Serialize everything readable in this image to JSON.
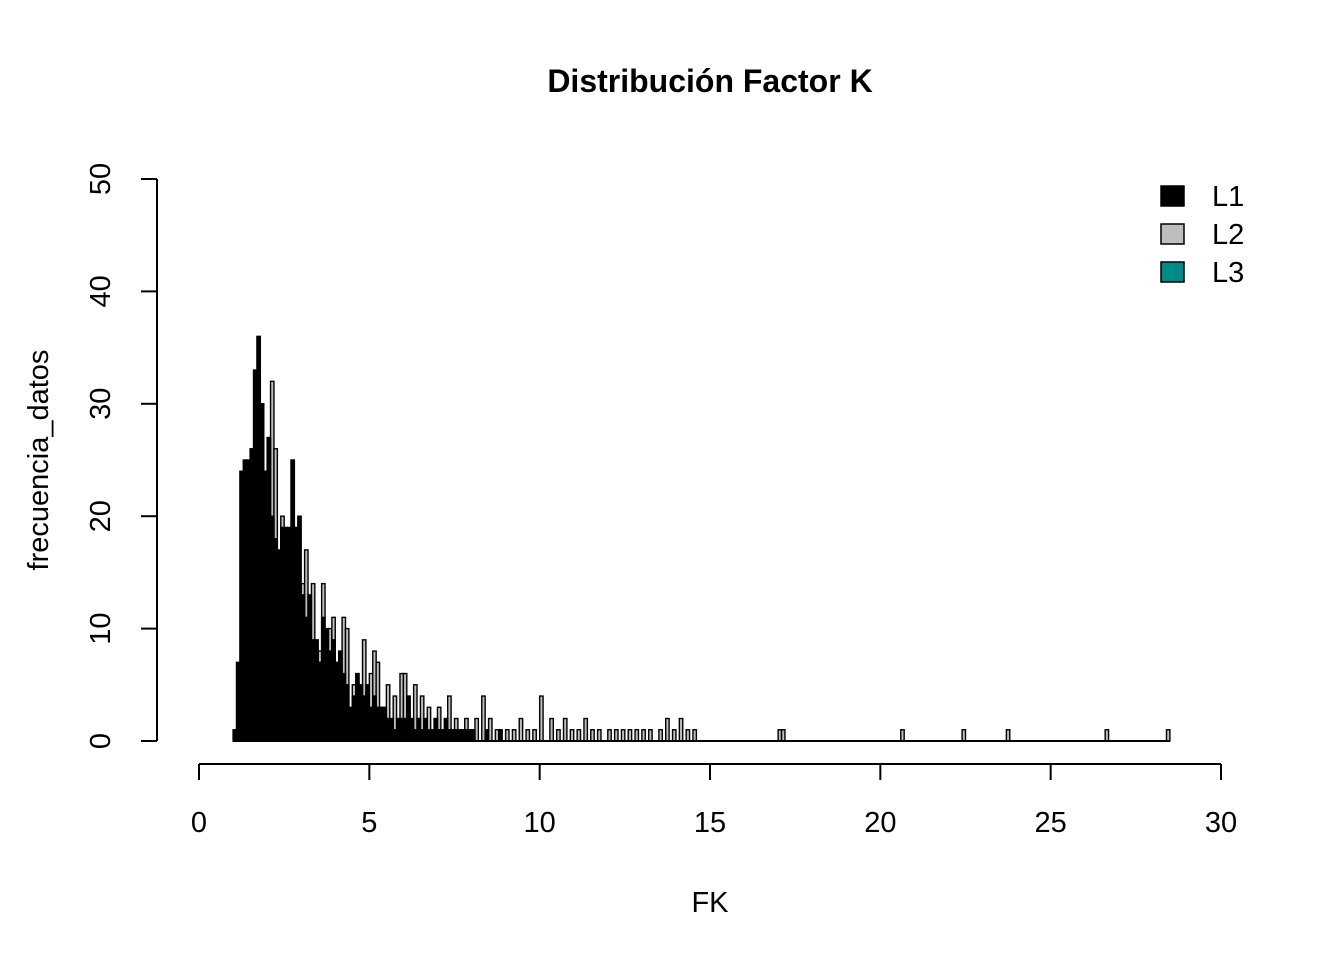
{
  "chart_data": {
    "type": "bar",
    "title": "Distribución Factor K",
    "xlabel": "FK",
    "ylabel": "frecuencia_datos",
    "xlim": [
      0,
      30
    ],
    "ylim": [
      0,
      50
    ],
    "x_ticks": [
      "0",
      "5",
      "10",
      "15",
      "20",
      "25",
      "30"
    ],
    "y_ticks": [
      "0",
      "10",
      "20",
      "30",
      "40",
      "50"
    ],
    "grid": false,
    "legend": {
      "position": "top-right",
      "entries": [
        {
          "label": "L1",
          "color": "#000000"
        },
        {
          "label": "L2",
          "color": "#bebebe"
        },
        {
          "label": "L3",
          "color": "#008b8b"
        }
      ]
    },
    "bar_width": 0.1,
    "series": [
      {
        "name": "L1",
        "color": "#000000",
        "bars": [
          [
            1.0,
            1
          ],
          [
            1.1,
            7
          ],
          [
            1.2,
            24
          ],
          [
            1.3,
            25
          ],
          [
            1.4,
            25
          ],
          [
            1.5,
            26
          ],
          [
            1.6,
            33
          ],
          [
            1.7,
            36
          ],
          [
            1.8,
            30
          ],
          [
            1.9,
            24
          ],
          [
            2.0,
            27
          ],
          [
            2.1,
            20
          ],
          [
            2.2,
            18
          ],
          [
            2.3,
            17
          ],
          [
            2.4,
            19
          ],
          [
            2.5,
            19
          ],
          [
            2.6,
            19
          ],
          [
            2.7,
            25
          ],
          [
            2.8,
            19
          ],
          [
            2.9,
            20
          ],
          [
            3.0,
            13
          ],
          [
            3.1,
            11
          ],
          [
            3.2,
            13
          ],
          [
            3.3,
            9
          ],
          [
            3.4,
            9
          ],
          [
            3.5,
            7
          ],
          [
            3.6,
            11
          ],
          [
            3.7,
            10
          ],
          [
            3.8,
            8
          ],
          [
            3.9,
            9
          ],
          [
            4.0,
            7
          ],
          [
            4.1,
            8
          ],
          [
            4.2,
            6
          ],
          [
            4.3,
            5
          ],
          [
            4.4,
            3
          ],
          [
            4.5,
            4
          ],
          [
            4.6,
            6
          ],
          [
            4.7,
            5
          ],
          [
            4.8,
            4
          ],
          [
            4.9,
            5
          ],
          [
            5.0,
            3
          ],
          [
            5.1,
            4
          ],
          [
            5.2,
            3
          ],
          [
            5.3,
            3
          ],
          [
            5.4,
            3
          ],
          [
            5.5,
            2
          ],
          [
            5.6,
            2
          ],
          [
            5.7,
            1
          ],
          [
            5.8,
            2
          ],
          [
            5.9,
            2
          ],
          [
            6.0,
            2
          ],
          [
            6.1,
            4
          ],
          [
            6.2,
            2
          ],
          [
            6.3,
            1
          ],
          [
            6.4,
            2
          ],
          [
            6.5,
            1
          ],
          [
            6.6,
            2
          ],
          [
            6.7,
            1
          ],
          [
            6.8,
            1
          ],
          [
            6.9,
            2
          ],
          [
            7.0,
            1
          ],
          [
            7.1,
            1
          ],
          [
            7.2,
            2
          ],
          [
            7.3,
            1
          ],
          [
            7.4,
            1
          ],
          [
            7.5,
            1
          ],
          [
            7.6,
            1
          ],
          [
            7.7,
            1
          ],
          [
            7.8,
            1
          ],
          [
            7.9,
            1
          ],
          [
            8.0,
            1
          ],
          [
            8.4,
            1
          ],
          [
            8.8,
            1
          ]
        ]
      },
      {
        "name": "L2",
        "color": "#bebebe",
        "bars": [
          [
            1.4,
            24
          ],
          [
            1.8,
            30
          ],
          [
            2.1,
            32
          ],
          [
            2.2,
            26
          ],
          [
            2.4,
            20
          ],
          [
            2.8,
            17
          ],
          [
            3.0,
            14
          ],
          [
            3.1,
            17
          ],
          [
            3.2,
            11
          ],
          [
            3.3,
            14
          ],
          [
            3.5,
            8
          ],
          [
            3.6,
            14
          ],
          [
            3.8,
            10
          ],
          [
            3.9,
            11
          ],
          [
            4.2,
            11
          ],
          [
            4.3,
            10
          ],
          [
            4.5,
            5
          ],
          [
            4.8,
            9
          ],
          [
            5.0,
            6
          ],
          [
            5.1,
            8
          ],
          [
            5.2,
            7
          ],
          [
            5.5,
            5
          ],
          [
            5.7,
            4
          ],
          [
            5.9,
            6
          ],
          [
            6.0,
            6
          ],
          [
            6.3,
            5
          ],
          [
            6.5,
            4
          ],
          [
            6.7,
            3
          ],
          [
            7.0,
            3
          ],
          [
            7.3,
            4
          ],
          [
            7.5,
            2
          ],
          [
            7.8,
            2
          ],
          [
            8.1,
            2
          ],
          [
            8.3,
            4
          ],
          [
            8.5,
            2
          ],
          [
            8.7,
            1
          ],
          [
            9.0,
            1
          ],
          [
            9.2,
            1
          ],
          [
            9.4,
            2
          ],
          [
            9.6,
            1
          ],
          [
            9.8,
            1
          ],
          [
            10.0,
            4
          ],
          [
            10.3,
            2
          ],
          [
            10.5,
            1
          ],
          [
            10.7,
            2
          ],
          [
            10.9,
            1
          ],
          [
            11.1,
            1
          ],
          [
            11.3,
            2
          ],
          [
            11.5,
            1
          ],
          [
            11.7,
            1
          ],
          [
            12.0,
            1
          ],
          [
            12.2,
            1
          ],
          [
            12.4,
            1
          ],
          [
            12.6,
            1
          ],
          [
            12.8,
            1
          ],
          [
            13.0,
            1
          ],
          [
            13.2,
            1
          ],
          [
            13.5,
            1
          ],
          [
            13.7,
            2
          ],
          [
            13.9,
            1
          ],
          [
            14.1,
            2
          ],
          [
            14.3,
            1
          ],
          [
            14.5,
            1
          ],
          [
            17.0,
            1
          ],
          [
            17.1,
            1
          ],
          [
            20.6,
            1
          ],
          [
            22.4,
            1
          ],
          [
            23.7,
            1
          ],
          [
            26.6,
            1
          ],
          [
            28.4,
            1
          ]
        ]
      },
      {
        "name": "L3",
        "color": "#008b8b",
        "bars": []
      }
    ]
  }
}
